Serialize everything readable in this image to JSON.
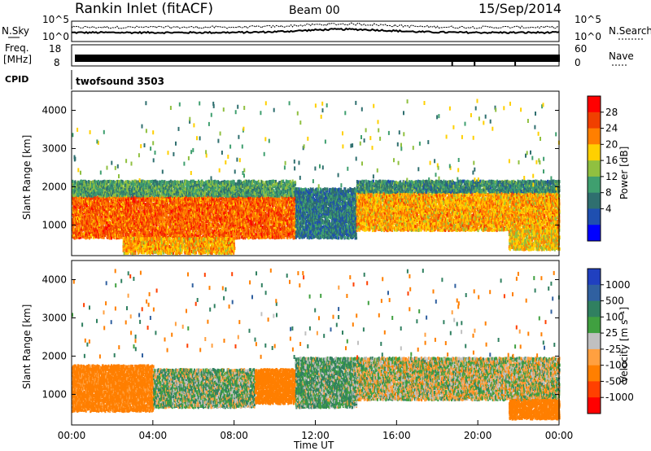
{
  "header": {
    "station": "Rankin Inlet (fitACF)",
    "beam": "Beam 00",
    "date": "15/Sep/2014"
  },
  "side_labels": {
    "nsky": "N.Sky",
    "nsearch": "N.Search",
    "freq_line1": "Freq.",
    "freq_line2": "[MHz]",
    "nave": "Nave",
    "cpid": "CPID"
  },
  "noise_axis": {
    "left_top": "10^5",
    "left_bottom": "10^0",
    "right_top": "10^5",
    "right_bottom": "10^0"
  },
  "freq_axis": {
    "left_top": "18",
    "left_bottom": "8",
    "right_top": "60",
    "right_bottom": "0"
  },
  "cpid_text": "twofsound 3503",
  "power_colorbar": {
    "label": "Power [dB]",
    "ticks": [
      "28",
      "24",
      "20",
      "16",
      "12",
      "8",
      "4"
    ],
    "colors": [
      "#ff0000",
      "#f04000",
      "#ff7f00",
      "#ffd000",
      "#90c040",
      "#3f9f6f",
      "#2f6f6f",
      "#1f4fb0",
      "#0000ff"
    ]
  },
  "velocity_colorbar": {
    "label": "Velocity [m s⁻¹]",
    "ticks": [
      "1000",
      "500",
      "100",
      "25",
      "-25",
      "-100",
      "-500",
      "-1000"
    ],
    "colors": [
      "#2040c0",
      "#3060a0",
      "#308060",
      "#40a040",
      "#c0c0c0",
      "#ffa040",
      "#ff7f00",
      "#ff4000",
      "#ff0000"
    ]
  },
  "chart_data": [
    {
      "type": "heatmap",
      "title": "Power",
      "xlabel": "",
      "ylabel": "Slant Range [km]",
      "xlim": [
        "00:00",
        "24:00"
      ],
      "ylim": [
        200,
        4500
      ],
      "yticks": [
        "4000",
        "3000",
        "2000",
        "1000"
      ],
      "colorbar_label": "Power [dB]",
      "bands": [
        {
          "t_start": 0.0,
          "t_end": 11.0,
          "range_low": 700,
          "range_high": 1800,
          "power_db": 26
        },
        {
          "t_start": 0.0,
          "t_end": 11.0,
          "range_low": 1800,
          "range_high": 2200,
          "power_db": 12
        },
        {
          "t_start": 2.5,
          "t_end": 8.0,
          "range_low": 300,
          "range_high": 700,
          "power_db": 22
        },
        {
          "t_start": 11.0,
          "t_end": 14.0,
          "range_low": 700,
          "range_high": 2000,
          "power_db": 8
        },
        {
          "t_start": 14.0,
          "t_end": 24.0,
          "range_low": 900,
          "range_high": 1900,
          "power_db": 22
        },
        {
          "t_start": 14.0,
          "t_end": 24.0,
          "range_low": 1900,
          "range_high": 2200,
          "power_db": 10
        },
        {
          "t_start": 21.5,
          "t_end": 24.0,
          "range_low": 400,
          "range_high": 900,
          "power_db": 20
        }
      ]
    },
    {
      "type": "heatmap",
      "title": "Velocity",
      "xlabel": "Time UT",
      "ylabel": "Slant Range [km]",
      "xlim": [
        "00:00",
        "24:00"
      ],
      "ylim": [
        200,
        4500
      ],
      "xticks": [
        "00:00",
        "04:00",
        "08:00",
        "12:00",
        "16:00",
        "20:00",
        "00:00"
      ],
      "yticks": [
        "4000",
        "3000",
        "2000",
        "1000"
      ],
      "colorbar_label": "Velocity [m s⁻¹]",
      "bands": [
        {
          "t_start": 0.0,
          "t_end": 4.0,
          "range_low": 600,
          "range_high": 1800,
          "velocity": -200
        },
        {
          "t_start": 4.0,
          "t_end": 9.0,
          "range_low": 700,
          "range_high": 1700,
          "velocity": 50
        },
        {
          "t_start": 9.0,
          "t_end": 11.0,
          "range_low": 800,
          "range_high": 1700,
          "velocity": -300
        },
        {
          "t_start": 11.0,
          "t_end": 14.0,
          "range_low": 700,
          "range_high": 2000,
          "velocity": 80
        },
        {
          "t_start": 14.0,
          "t_end": 24.0,
          "range_low": 900,
          "range_high": 2000,
          "velocity": 0
        },
        {
          "t_start": 21.5,
          "t_end": 24.0,
          "range_low": 400,
          "range_high": 900,
          "velocity": -300
        }
      ]
    }
  ]
}
